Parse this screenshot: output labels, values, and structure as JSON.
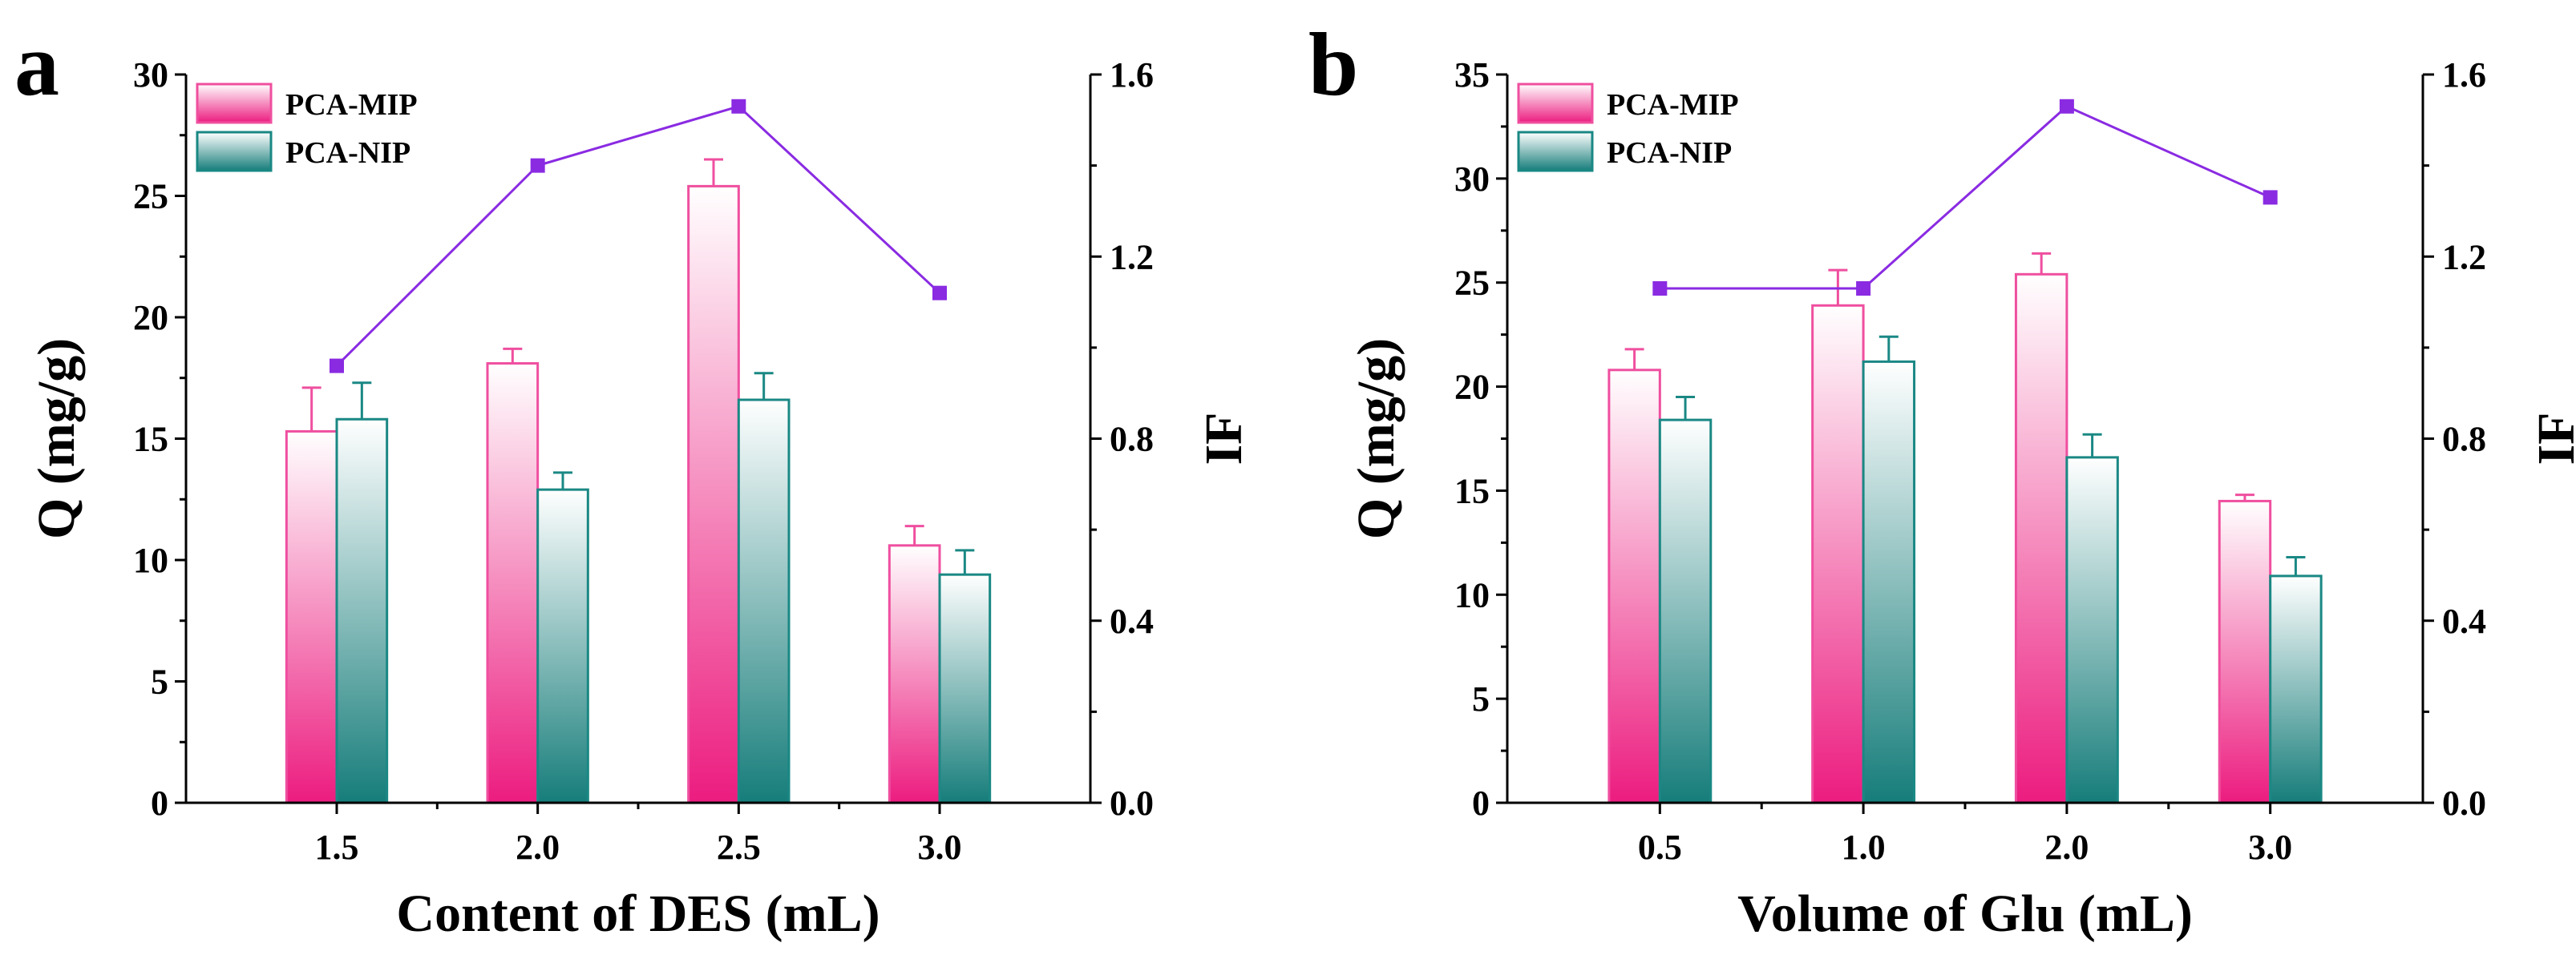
{
  "chart_data": [
    {
      "panel_label": "a",
      "type": "bar",
      "xlabel": "Content of DES (mL)",
      "ylabel": "Q (mg/g)",
      "y2label": "IF",
      "categories": [
        "1.5",
        "2.0",
        "2.5",
        "3.0"
      ],
      "ylim": [
        0,
        30
      ],
      "yticks": [
        0,
        5,
        10,
        15,
        20,
        25,
        30
      ],
      "y2lim": [
        0,
        1.6
      ],
      "y2ticks": [
        "0.0",
        "0.4",
        "0.8",
        "1.2",
        "1.6"
      ],
      "series": [
        {
          "name": "PCA-MIP",
          "values": [
            15.3,
            18.1,
            25.4,
            10.6
          ],
          "errors": [
            1.8,
            0.6,
            1.1,
            0.8
          ],
          "color_top": "#ffffff",
          "color_bottom": "#ec1c7f",
          "edge": "#ef4f9f"
        },
        {
          "name": "PCA-NIP",
          "values": [
            15.8,
            12.9,
            16.6,
            9.4
          ],
          "errors": [
            1.5,
            0.7,
            1.1,
            1.0
          ],
          "color_top": "#ffffff",
          "color_bottom": "#167d7a",
          "edge": "#1a8884"
        }
      ],
      "line": {
        "name": "IF",
        "values": [
          0.96,
          1.4,
          1.53,
          1.12
        ],
        "color": "#8a2be2"
      },
      "legend_position": "top-left"
    },
    {
      "panel_label": "b",
      "type": "bar",
      "xlabel": "Volume of Glu (mL)",
      "ylabel": "Q (mg/g)",
      "y2label": "IF",
      "categories": [
        "0.5",
        "1.0",
        "2.0",
        "3.0"
      ],
      "ylim": [
        0,
        35
      ],
      "yticks": [
        0,
        5,
        10,
        15,
        20,
        25,
        30,
        35
      ],
      "y2lim": [
        0,
        1.6
      ],
      "y2ticks": [
        "0.0",
        "0.4",
        "0.8",
        "1.2",
        "1.6"
      ],
      "series": [
        {
          "name": "PCA-MIP",
          "values": [
            20.8,
            23.9,
            25.4,
            14.5
          ],
          "errors": [
            1.0,
            1.7,
            1.0,
            0.3
          ],
          "color_top": "#ffffff",
          "color_bottom": "#ec1c7f",
          "edge": "#ef4f9f"
        },
        {
          "name": "PCA-NIP",
          "values": [
            18.4,
            21.2,
            16.6,
            10.9
          ],
          "errors": [
            1.1,
            1.2,
            1.1,
            0.9
          ],
          "color_top": "#ffffff",
          "color_bottom": "#167d7a",
          "edge": "#1a8884"
        }
      ],
      "line": {
        "name": "IF",
        "values": [
          1.13,
          1.13,
          1.53,
          1.33
        ],
        "color": "#8a2be2"
      },
      "legend_position": "top-left"
    }
  ]
}
